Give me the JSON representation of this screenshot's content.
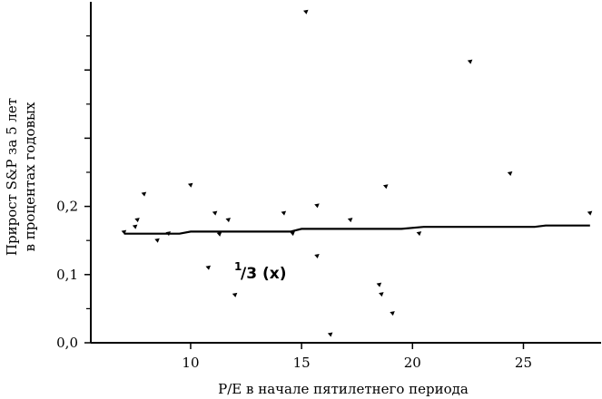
{
  "chart_data": {
    "type": "scatter",
    "xlabel": "P/E в начале пятилетнего периода",
    "ylabel_line1": "Прирост S&P за 5 лет",
    "ylabel_line2": "в процентах годовых",
    "annotation_sup": "1",
    "annotation_main": "/3 (x)",
    "xlim": [
      5.5,
      28.5
    ],
    "ylim": [
      0.0,
      0.5
    ],
    "x_ticks": [
      10,
      15,
      20,
      25
    ],
    "x_tick_labels": [
      "10",
      "15",
      "20",
      "25"
    ],
    "y_ticks": [
      0.0,
      0.1,
      0.2
    ],
    "y_tick_labels": [
      "0,0",
      "0,1",
      "0,2"
    ],
    "grid": false,
    "points": [
      {
        "x": 7.0,
        "y": 0.162
      },
      {
        "x": 7.5,
        "y": 0.17
      },
      {
        "x": 7.6,
        "y": 0.18
      },
      {
        "x": 7.9,
        "y": 0.218
      },
      {
        "x": 8.5,
        "y": 0.15
      },
      {
        "x": 9.0,
        "y": 0.16
      },
      {
        "x": 10.0,
        "y": 0.231
      },
      {
        "x": 10.8,
        "y": 0.11
      },
      {
        "x": 11.1,
        "y": 0.19
      },
      {
        "x": 11.3,
        "y": 0.159
      },
      {
        "x": 11.7,
        "y": 0.18
      },
      {
        "x": 12.0,
        "y": 0.07
      },
      {
        "x": 14.2,
        "y": 0.19
      },
      {
        "x": 14.6,
        "y": 0.16
      },
      {
        "x": 15.2,
        "y": 0.485
      },
      {
        "x": 15.7,
        "y": 0.127
      },
      {
        "x": 15.7,
        "y": 0.201
      },
      {
        "x": 16.3,
        "y": 0.012
      },
      {
        "x": 17.2,
        "y": 0.18
      },
      {
        "x": 18.5,
        "y": 0.085
      },
      {
        "x": 18.6,
        "y": 0.071
      },
      {
        "x": 18.8,
        "y": 0.229
      },
      {
        "x": 19.1,
        "y": 0.043
      },
      {
        "x": 20.3,
        "y": 0.16
      },
      {
        "x": 22.6,
        "y": 0.412
      },
      {
        "x": 24.4,
        "y": 0.248
      },
      {
        "x": 28.0,
        "y": 0.19
      }
    ],
    "trend_line": {
      "x": [
        7.0,
        9.5,
        10.0,
        14.5,
        15.0,
        19.5,
        20.5,
        25.5,
        26.0,
        28.0
      ],
      "y": [
        0.16,
        0.16,
        0.163,
        0.163,
        0.167,
        0.167,
        0.17,
        0.17,
        0.172,
        0.172
      ]
    }
  }
}
